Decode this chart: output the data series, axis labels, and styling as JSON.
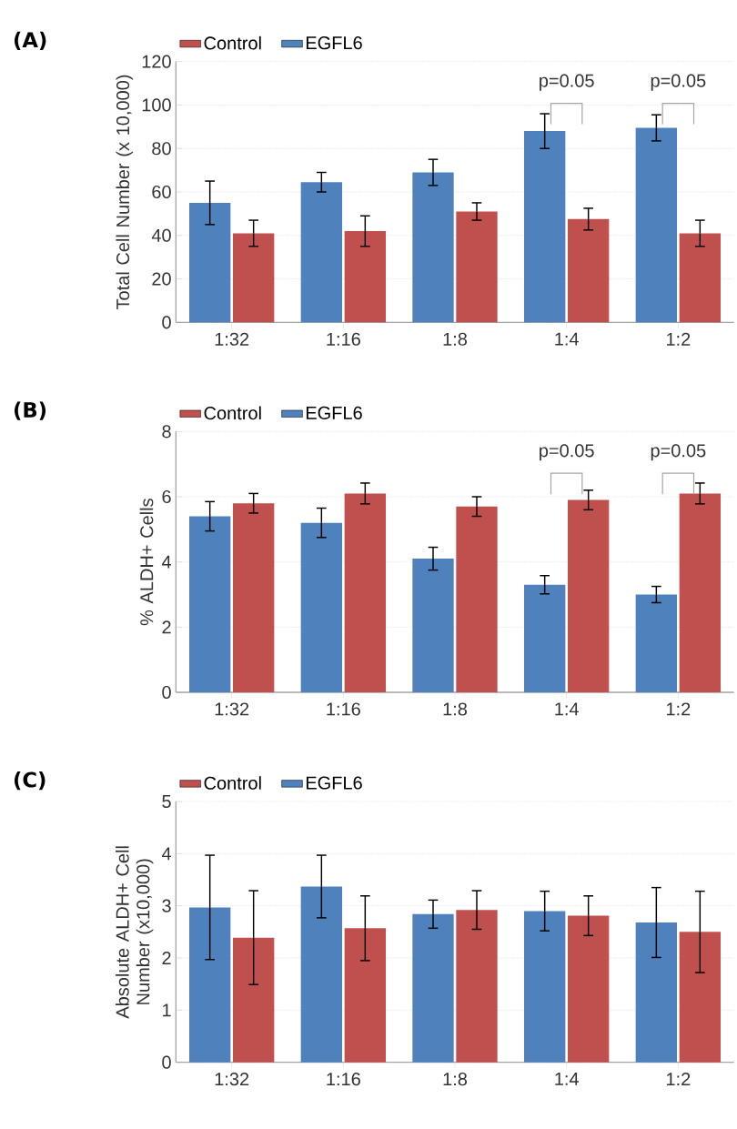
{
  "chart_data": [
    {
      "type": "bar",
      "title": "(A)",
      "ylabel": "Total Cell Number (x 10,000)",
      "categories": [
        "1:32",
        "1:16",
        "1:8",
        "1:4",
        "1:2"
      ],
      "series": [
        {
          "name": "EGFL6",
          "color": "#4f81bd",
          "values": [
            55,
            64.5,
            69,
            88,
            89.5
          ],
          "errors": [
            10,
            4.5,
            6,
            8,
            6
          ]
        },
        {
          "name": "Control",
          "color": "#c0504d",
          "values": [
            41,
            42,
            51,
            47.5,
            41
          ],
          "errors": [
            6,
            7,
            4,
            5,
            6
          ]
        }
      ],
      "ylim": [
        0,
        120
      ],
      "yticks": [
        0,
        20,
        40,
        60,
        80,
        100,
        120
      ],
      "grid": "y",
      "legend": "top left",
      "annotations": [
        "p=0.05",
        "p=0.05"
      ]
    },
    {
      "type": "bar",
      "title": "(B)",
      "ylabel": "% ALDH+ Cells",
      "categories": [
        "1:32",
        "1:16",
        "1:8",
        "1:4",
        "1:2"
      ],
      "series": [
        {
          "name": "EGFL6",
          "color": "#4f81bd",
          "values": [
            5.4,
            5.2,
            4.1,
            3.3,
            3.0
          ],
          "errors": [
            0.45,
            0.45,
            0.35,
            0.28,
            0.25
          ]
        },
        {
          "name": "Control",
          "color": "#c0504d",
          "values": [
            5.8,
            6.1,
            5.7,
            5.9,
            6.1
          ],
          "errors": [
            0.3,
            0.32,
            0.3,
            0.3,
            0.32
          ]
        }
      ],
      "ylim": [
        0,
        8
      ],
      "yticks": [
        0,
        2,
        4,
        6,
        8
      ],
      "grid": "y",
      "legend": "top left",
      "annotations": [
        "p=0.05",
        "p=0.05"
      ]
    },
    {
      "type": "bar",
      "title": "(C)",
      "ylabel": "Absolute ALDH+ Cell Number (x10,000)",
      "categories": [
        "1:32",
        "1:16",
        "1:8",
        "1:4",
        "1:2"
      ],
      "series": [
        {
          "name": "EGFL6",
          "color": "#4f81bd",
          "values": [
            2.97,
            3.37,
            2.84,
            2.9,
            2.68
          ],
          "errors": [
            1.0,
            0.6,
            0.27,
            0.38,
            0.67
          ]
        },
        {
          "name": "Control",
          "color": "#c0504d",
          "values": [
            2.39,
            2.57,
            2.92,
            2.81,
            2.5
          ],
          "errors": [
            0.9,
            0.62,
            0.37,
            0.38,
            0.78
          ]
        }
      ],
      "ylim": [
        0,
        5
      ],
      "yticks": [
        0,
        1,
        2,
        3,
        4,
        5
      ],
      "grid": "y",
      "legend": "top left"
    }
  ]
}
